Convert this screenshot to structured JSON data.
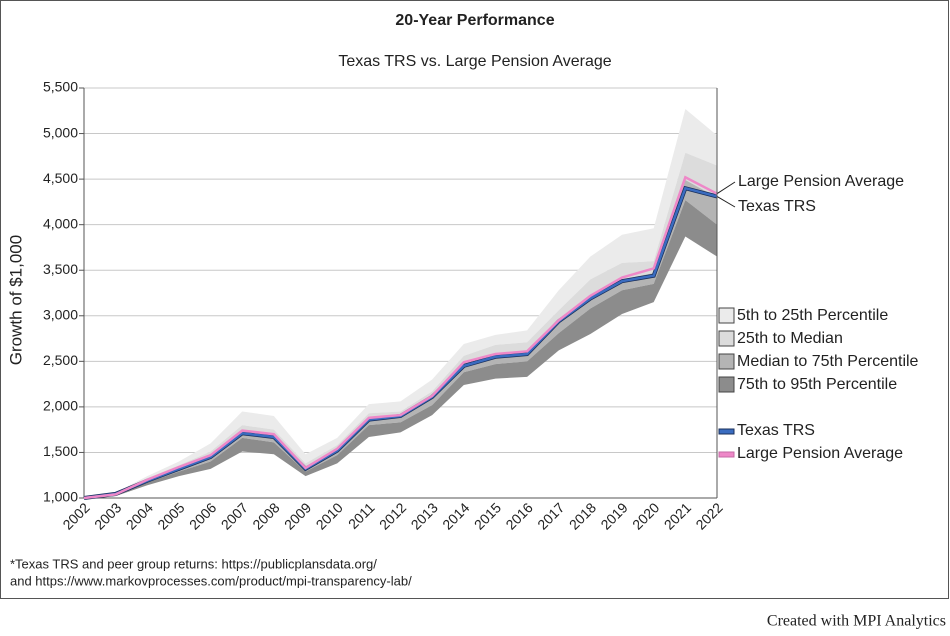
{
  "chart_data": {
    "type": "band-line",
    "title": "20-Year Performance",
    "subtitle": "Texas TRS vs. Large Pension Average",
    "y_label": "Growth of $1,000",
    "categories": [
      "2002",
      "2003",
      "2004",
      "2005",
      "2006",
      "2007",
      "2008",
      "2009",
      "2010",
      "2011",
      "2012",
      "2013",
      "2014",
      "2015",
      "2016",
      "2017",
      "2018",
      "2019",
      "2020",
      "2021",
      "2022"
    ],
    "ylim": [
      1000,
      5500
    ],
    "yticks": [
      {
        "value": 1000,
        "label": "1,000"
      },
      {
        "value": 1500,
        "label": "1,500"
      },
      {
        "value": 2000,
        "label": "2,000"
      },
      {
        "value": 2500,
        "label": "2,500"
      },
      {
        "value": 3000,
        "label": "3,000"
      },
      {
        "value": 3500,
        "label": "3,500"
      },
      {
        "value": 4000,
        "label": "4,000"
      },
      {
        "value": 4500,
        "label": "4,500"
      },
      {
        "value": 5000,
        "label": "5,000"
      },
      {
        "value": 5500,
        "label": "5,500"
      }
    ],
    "grid": true,
    "bands": [
      {
        "name": "5th to 25th Percentile",
        "color": "#ebebeb",
        "upper": [
          1000,
          1060,
          1240,
          1400,
          1600,
          1950,
          1900,
          1480,
          1660,
          2030,
          2060,
          2300,
          2690,
          2790,
          2840,
          3280,
          3650,
          3890,
          3960,
          5270,
          4980
        ],
        "lower": [
          1000,
          1050,
          1220,
          1360,
          1510,
          1800,
          1750,
          1380,
          1580,
          1930,
          1950,
          2170,
          2560,
          2680,
          2710,
          3060,
          3400,
          3580,
          3600,
          4790,
          4650
        ]
      },
      {
        "name": "25th to Median",
        "color": "#dcdcdc",
        "upper": [
          1000,
          1050,
          1220,
          1360,
          1510,
          1800,
          1750,
          1380,
          1580,
          1930,
          1950,
          2170,
          2560,
          2680,
          2710,
          3060,
          3400,
          3580,
          3600,
          4790,
          4650
        ],
        "lower": [
          1000,
          1040,
          1200,
          1330,
          1460,
          1730,
          1690,
          1330,
          1530,
          1870,
          1900,
          2100,
          2470,
          2560,
          2590,
          2930,
          3190,
          3400,
          3470,
          4490,
          4300
        ]
      },
      {
        "name": "Median to 75th Percentile",
        "color": "#b4b4b4",
        "upper": [
          1000,
          1040,
          1200,
          1330,
          1460,
          1730,
          1690,
          1330,
          1530,
          1870,
          1900,
          2100,
          2470,
          2560,
          2590,
          2930,
          3190,
          3400,
          3470,
          4490,
          4300
        ],
        "lower": [
          1000,
          1030,
          1170,
          1290,
          1400,
          1660,
          1610,
          1290,
          1470,
          1800,
          1830,
          2020,
          2380,
          2470,
          2500,
          2810,
          3080,
          3280,
          3350,
          4270,
          4000
        ]
      },
      {
        "name": "75th to 95th Percentile",
        "color": "#8c8c8c",
        "upper": [
          1000,
          1030,
          1170,
          1290,
          1400,
          1660,
          1610,
          1290,
          1470,
          1800,
          1830,
          2020,
          2380,
          2470,
          2500,
          2810,
          3080,
          3280,
          3350,
          4270,
          4000
        ],
        "lower": [
          1000,
          1020,
          1140,
          1240,
          1320,
          1510,
          1480,
          1240,
          1380,
          1670,
          1720,
          1910,
          2240,
          2310,
          2330,
          2620,
          2800,
          3020,
          3150,
          3870,
          3650
        ]
      }
    ],
    "series": [
      {
        "name": "Texas TRS",
        "color": "#3a6cc0",
        "values": [
          1000,
          1045,
          1190,
          1320,
          1450,
          1710,
          1670,
          1320,
          1520,
          1860,
          1900,
          2110,
          2450,
          2550,
          2580,
          2940,
          3190,
          3380,
          3440,
          4400,
          4310
        ]
      },
      {
        "name": "Large Pension Average",
        "color": "#ee88c8",
        "values": [
          1000,
          1040,
          1200,
          1340,
          1470,
          1740,
          1700,
          1330,
          1540,
          1880,
          1910,
          2120,
          2490,
          2580,
          2610,
          2950,
          3220,
          3420,
          3520,
          4520,
          4340
        ]
      }
    ],
    "footnote": [
      "*Texas TRS and peer group returns: https://publicplansdata.org/",
      "and https://www.markovprocesses.com/product/mpi-transparency-lab/"
    ],
    "credit": "Created with MPI Analytics"
  }
}
